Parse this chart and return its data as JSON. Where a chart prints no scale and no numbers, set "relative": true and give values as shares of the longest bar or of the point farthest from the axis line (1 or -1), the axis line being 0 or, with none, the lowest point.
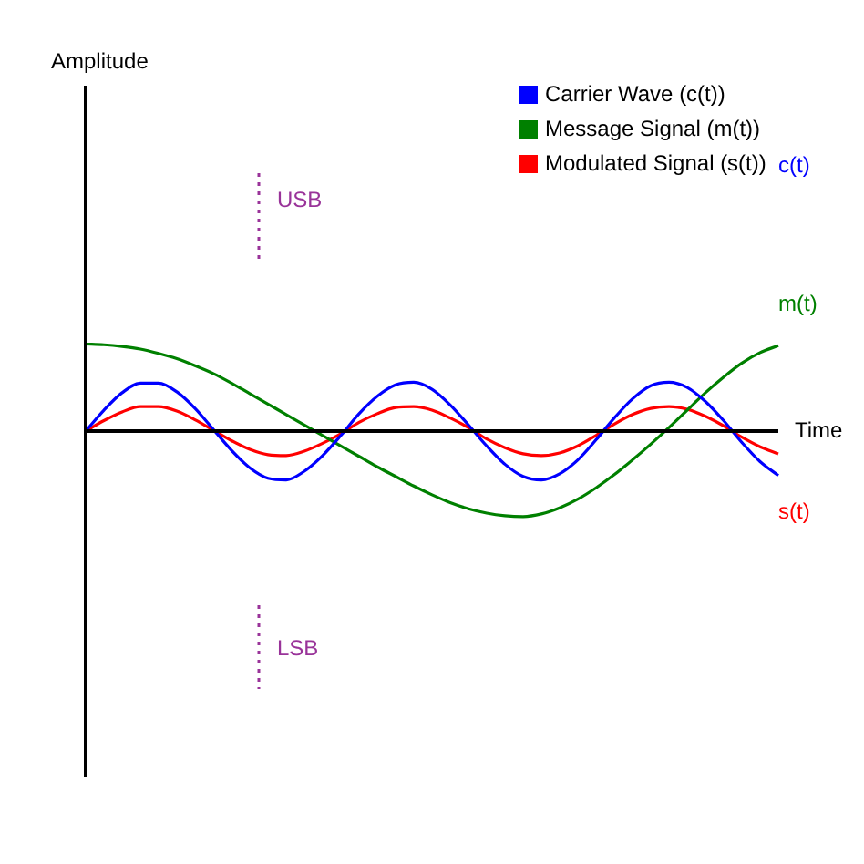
{
  "chart_data": {
    "type": "line",
    "relative": true,
    "xlabel": "Time",
    "legend": "top right",
    "marker": "none",
    "line_style": "solid",
    "categories": [
      null,
      null,
      null,
      null,
      null,
      null,
      null,
      null,
      null,
      null,
      null,
      null,
      null,
      null,
      null,
      null,
      null,
      null,
      null,
      null,
      null,
      null,
      null,
      null,
      null,
      null,
      null,
      null,
      null,
      null,
      null,
      null,
      null,
      null,
      null,
      null,
      null,
      null,
      null
    ],
    "series": [
      {
        "name": "Carrier Wave (c(t))",
        "color": "#0000ff",
        "values": [
          0,
          0.24,
          0.44,
          0.55,
          0.55,
          0.45,
          0.26,
          0.02,
          -0.22,
          -0.42,
          -0.54,
          -0.56,
          -0.46,
          -0.28,
          -0.05,
          0.2,
          0.4,
          0.53,
          0.56,
          0.48,
          0.3,
          0.07,
          -0.17,
          -0.38,
          -0.52,
          -0.56,
          -0.49,
          -0.33,
          -0.1,
          0.15,
          0.37,
          0.52,
          0.56,
          0.5,
          0.34,
          0.12,
          -0.13,
          -0.35,
          -0.51
        ]
      },
      {
        "name": "Message Signal (m(t))",
        "color": "#008000",
        "values": [
          1,
          0.99,
          0.97,
          0.94,
          0.89,
          0.83,
          0.75,
          0.66,
          0.55,
          0.43,
          0.31,
          0.19,
          0.07,
          -0.05,
          -0.17,
          -0.29,
          -0.41,
          -0.52,
          -0.63,
          -0.73,
          -0.82,
          -0.89,
          -0.94,
          -0.97,
          -0.98,
          -0.95,
          -0.88,
          -0.78,
          -0.65,
          -0.5,
          -0.33,
          -0.15,
          0.04,
          0.24,
          0.44,
          0.62,
          0.78,
          0.9,
          0.98
        ]
      },
      {
        "name": "Modulated Signal (s(t))",
        "color": "#ff0000",
        "values": [
          0,
          0.12,
          0.22,
          0.28,
          0.28,
          0.23,
          0.13,
          0.01,
          -0.11,
          -0.21,
          -0.27,
          -0.28,
          -0.23,
          -0.14,
          -0.03,
          0.1,
          0.2,
          0.27,
          0.28,
          0.24,
          0.15,
          0.04,
          -0.09,
          -0.19,
          -0.26,
          -0.28,
          -0.25,
          -0.17,
          -0.05,
          0.08,
          0.19,
          0.26,
          0.28,
          0.25,
          0.17,
          0.06,
          -0.07,
          -0.18,
          -0.26
        ]
      }
    ],
    "annotations": [
      "USB",
      "LSB",
      "c(t)",
      "m(t)",
      "s(t)",
      "Amplitude"
    ]
  }
}
